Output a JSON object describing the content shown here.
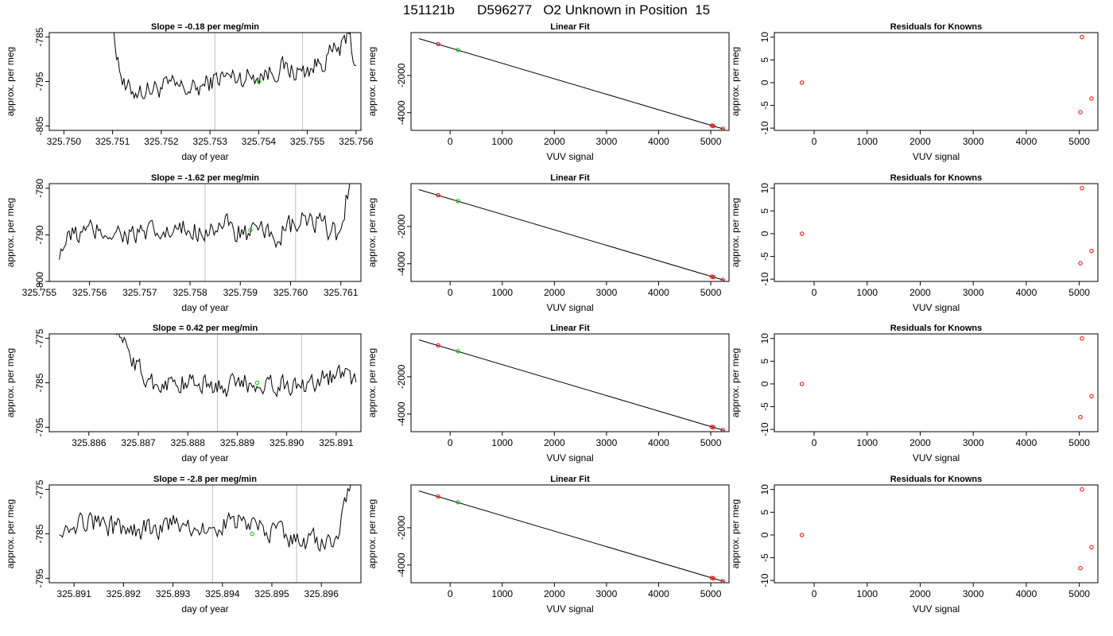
{
  "figure": {
    "title": "151121b      D596277   O2 Unknown in Position  15",
    "colors": {
      "line": "#000000",
      "unknown": "#00cc00",
      "known": "#ff0000",
      "marker": "#bfbfbf"
    }
  },
  "chart_data": [
    {
      "type": "line",
      "row": 0,
      "col": 0,
      "title": "Slope =  -0.18  per meg/min",
      "xlabel": "day of year",
      "ylabel": "approx. per meg",
      "xlim": [
        325.7497,
        325.7561
      ],
      "ylim": [
        -806,
        -784
      ],
      "xticks": [
        "325.750",
        "325.751",
        "325.752",
        "325.753",
        "325.754",
        "325.755",
        "325.756"
      ],
      "yticks": [
        "-805",
        "-795",
        "-785"
      ],
      "vlines": [
        325.7531,
        325.7549
      ],
      "start_x": 325.7509,
      "end_x": 325.756,
      "npts": 170,
      "trace": [
        [
          0.0,
          -776
        ],
        [
          0.025,
          -784
        ],
        [
          0.045,
          -791
        ],
        [
          0.07,
          -797
        ],
        [
          0.15,
          -797
        ],
        [
          0.25,
          -796
        ],
        [
          0.35,
          -797
        ],
        [
          0.45,
          -794
        ],
        [
          0.55,
          -794
        ],
        [
          0.65,
          -793
        ],
        [
          0.7,
          -792
        ],
        [
          0.78,
          -793
        ],
        [
          0.85,
          -791
        ],
        [
          0.92,
          -788
        ],
        [
          0.96,
          -787
        ],
        [
          0.972,
          -782
        ],
        [
          0.985,
          -789
        ],
        [
          1.0,
          -790
        ]
      ],
      "amp": 2.2,
      "unknown_point": {
        "x": 325.754,
        "y": -795
      }
    },
    {
      "type": "scatter",
      "row": 0,
      "col": 1,
      "title": "Linear Fit",
      "xlabel": "VUV signal",
      "ylabel": "approx. per meg",
      "xlim": [
        -750,
        5350
      ],
      "ylim": [
        -4950,
        300
      ],
      "xticks": [
        0,
        1000,
        2000,
        3000,
        4000,
        5000
      ],
      "yticks": [
        -4000,
        -2000
      ],
      "fit_line": {
        "x": [
          -600,
          5250
        ],
        "y": [
          -20,
          -4880
        ]
      },
      "known_points": [
        {
          "x": -230,
          "y": -320
        },
        {
          "x": 5020,
          "y": -4690
        },
        {
          "x": 5050,
          "y": -4720
        },
        {
          "x": 5230,
          "y": -4860
        }
      ],
      "unknown_points": [
        {
          "x": 150,
          "y": -630
        }
      ]
    },
    {
      "type": "scatter",
      "row": 0,
      "col": 2,
      "title": "Residuals for Knowns",
      "xlabel": "VUV signal",
      "ylabel": "approx. per meg",
      "xlim": [
        -750,
        5350
      ],
      "ylim": [
        -10.5,
        11
      ],
      "xticks": [
        0,
        1000,
        2000,
        3000,
        4000,
        5000
      ],
      "yticks": [
        -10,
        -5,
        0,
        5,
        10
      ],
      "points": [
        {
          "x": -230,
          "y": 0
        },
        {
          "x": 5020,
          "y": -6.5
        },
        {
          "x": 5050,
          "y": 10
        },
        {
          "x": 5230,
          "y": -3.5
        }
      ]
    },
    {
      "type": "line",
      "row": 1,
      "col": 0,
      "title": "Slope =  -1.62  per meg/min",
      "xlabel": "day of year",
      "ylabel": "approx. per meg",
      "xlim": [
        325.7552,
        325.7614
      ],
      "ylim": [
        -800,
        -779
      ],
      "xticks": [
        "325.755",
        "325.756",
        "325.757",
        "325.758",
        "325.759",
        "325.760",
        "325.761"
      ],
      "yticks": [
        "-800",
        "-790",
        "-780"
      ],
      "vlines": [
        325.7583,
        325.7601
      ],
      "start_x": 325.7554,
      "end_x": 325.7612,
      "npts": 180,
      "trace": [
        [
          0.0,
          -793
        ],
        [
          0.05,
          -790
        ],
        [
          0.15,
          -789
        ],
        [
          0.25,
          -790
        ],
        [
          0.35,
          -790
        ],
        [
          0.45,
          -789
        ],
        [
          0.55,
          -788
        ],
        [
          0.65,
          -790
        ],
        [
          0.75,
          -790
        ],
        [
          0.85,
          -787
        ],
        [
          0.93,
          -789
        ],
        [
          0.96,
          -790
        ],
        [
          0.98,
          -784
        ],
        [
          1.0,
          -776
        ]
      ],
      "amp": 2.4,
      "unknown_point": {
        "x": 325.7592,
        "y": -789
      }
    },
    {
      "type": "scatter",
      "row": 1,
      "col": 1,
      "title": "Linear Fit",
      "xlabel": "VUV signal",
      "ylabel": "approx. per meg",
      "xlim": [
        -750,
        5350
      ],
      "ylim": [
        -4950,
        300
      ],
      "xticks": [
        0,
        1000,
        2000,
        3000,
        4000,
        5000
      ],
      "yticks": [
        -4000,
        -2000
      ],
      "fit_line": {
        "x": [
          -600,
          5250
        ],
        "y": [
          -20,
          -4880
        ]
      },
      "known_points": [
        {
          "x": -230,
          "y": -320
        },
        {
          "x": 5020,
          "y": -4690
        },
        {
          "x": 5050,
          "y": -4720
        },
        {
          "x": 5230,
          "y": -4860
        }
      ],
      "unknown_points": [
        {
          "x": 150,
          "y": -630
        }
      ]
    },
    {
      "type": "scatter",
      "row": 1,
      "col": 2,
      "title": "Residuals for Knowns",
      "xlabel": "VUV signal",
      "ylabel": "approx. per meg",
      "xlim": [
        -750,
        5350
      ],
      "ylim": [
        -10.5,
        11
      ],
      "xticks": [
        0,
        1000,
        2000,
        3000,
        4000,
        5000
      ],
      "yticks": [
        -10,
        -5,
        0,
        5,
        10
      ],
      "points": [
        {
          "x": -230,
          "y": 0
        },
        {
          "x": 5020,
          "y": -6.5
        },
        {
          "x": 5050,
          "y": 10
        },
        {
          "x": 5230,
          "y": -3.8
        }
      ]
    },
    {
      "type": "line",
      "row": 2,
      "col": 0,
      "title": "Slope =  0.42  per meg/min",
      "xlabel": "day of year",
      "ylabel": "approx. per meg",
      "xlim": [
        325.8852,
        325.8915
      ],
      "ylim": [
        -796,
        -774
      ],
      "xticks": [
        "325.886",
        "325.887",
        "325.888",
        "325.889",
        "325.890",
        "325.891"
      ],
      "yticks": [
        "-795",
        "-785",
        "-775"
      ],
      "vlines": [
        325.8886,
        325.8903
      ],
      "start_x": 325.8865,
      "end_x": 325.8914,
      "npts": 160,
      "trace": [
        [
          0.0,
          -770
        ],
        [
          0.02,
          -775
        ],
        [
          0.06,
          -777
        ],
        [
          0.1,
          -782
        ],
        [
          0.15,
          -785
        ],
        [
          0.25,
          -785
        ],
        [
          0.35,
          -785
        ],
        [
          0.45,
          -786
        ],
        [
          0.55,
          -785
        ],
        [
          0.65,
          -785
        ],
        [
          0.75,
          -786
        ],
        [
          0.85,
          -784
        ],
        [
          0.95,
          -783
        ],
        [
          1.0,
          -785
        ]
      ],
      "amp": 2.2,
      "unknown_point": {
        "x": 325.8894,
        "y": -785
      }
    },
    {
      "type": "scatter",
      "row": 2,
      "col": 1,
      "title": "Linear Fit",
      "xlabel": "VUV signal",
      "ylabel": "approx. per meg",
      "xlim": [
        -750,
        5350
      ],
      "ylim": [
        -4950,
        300
      ],
      "xticks": [
        0,
        1000,
        2000,
        3000,
        4000,
        5000
      ],
      "yticks": [
        -4000,
        -2000
      ],
      "fit_line": {
        "x": [
          -600,
          5250
        ],
        "y": [
          -20,
          -4880
        ]
      },
      "known_points": [
        {
          "x": -230,
          "y": -320
        },
        {
          "x": 5020,
          "y": -4690
        },
        {
          "x": 5050,
          "y": -4720
        },
        {
          "x": 5230,
          "y": -4860
        }
      ],
      "unknown_points": [
        {
          "x": 150,
          "y": -630
        }
      ]
    },
    {
      "type": "scatter",
      "row": 2,
      "col": 2,
      "title": "Residuals for Knowns",
      "xlabel": "VUV signal",
      "ylabel": "approx. per meg",
      "xlim": [
        -750,
        5350
      ],
      "ylim": [
        -10.5,
        11
      ],
      "xticks": [
        0,
        1000,
        2000,
        3000,
        4000,
        5000
      ],
      "yticks": [
        -10,
        -5,
        0,
        5,
        10
      ],
      "points": [
        {
          "x": -230,
          "y": 0
        },
        {
          "x": 5020,
          "y": -7.3
        },
        {
          "x": 5050,
          "y": 10
        },
        {
          "x": 5230,
          "y": -2.7
        }
      ]
    },
    {
      "type": "line",
      "row": 3,
      "col": 0,
      "title": "Slope =  -2.8  per meg/min",
      "xlabel": "day of year",
      "ylabel": "approx. per meg",
      "xlim": [
        325.8905,
        325.8968
      ],
      "ylim": [
        -796,
        -774
      ],
      "xticks": [
        "325.891",
        "325.892",
        "325.893",
        "325.894",
        "325.895",
        "325.896"
      ],
      "yticks": [
        "-795",
        "-785",
        "-775"
      ],
      "vlines": [
        325.8938,
        325.8955
      ],
      "start_x": 325.8907,
      "end_x": 325.8966,
      "npts": 180,
      "trace": [
        [
          0.0,
          -783
        ],
        [
          0.1,
          -782
        ],
        [
          0.2,
          -784
        ],
        [
          0.3,
          -784
        ],
        [
          0.4,
          -783
        ],
        [
          0.5,
          -784
        ],
        [
          0.6,
          -782
        ],
        [
          0.7,
          -784
        ],
        [
          0.8,
          -786
        ],
        [
          0.9,
          -787
        ],
        [
          0.94,
          -787
        ],
        [
          0.96,
          -783
        ],
        [
          0.98,
          -778
        ],
        [
          1.0,
          -772
        ]
      ],
      "amp": 2.3,
      "unknown_point": {
        "x": 325.8946,
        "y": -785
      }
    },
    {
      "type": "scatter",
      "row": 3,
      "col": 1,
      "title": "Linear Fit",
      "xlabel": "VUV signal",
      "ylabel": "approx. per meg",
      "xlim": [
        -750,
        5350
      ],
      "ylim": [
        -4950,
        300
      ],
      "xticks": [
        0,
        1000,
        2000,
        3000,
        4000,
        5000
      ],
      "yticks": [
        -4000,
        -2000
      ],
      "fit_line": {
        "x": [
          -600,
          5250
        ],
        "y": [
          -20,
          -4880
        ]
      },
      "known_points": [
        {
          "x": -230,
          "y": -320
        },
        {
          "x": 5020,
          "y": -4690
        },
        {
          "x": 5050,
          "y": -4720
        },
        {
          "x": 5230,
          "y": -4860
        }
      ],
      "unknown_points": [
        {
          "x": 150,
          "y": -630
        }
      ]
    },
    {
      "type": "scatter",
      "row": 3,
      "col": 2,
      "title": "Residuals for Knowns",
      "xlabel": "VUV signal",
      "ylabel": "approx. per meg",
      "xlim": [
        -750,
        5350
      ],
      "ylim": [
        -10.5,
        11
      ],
      "xticks": [
        0,
        1000,
        2000,
        3000,
        4000,
        5000
      ],
      "yticks": [
        -10,
        -5,
        0,
        5,
        10
      ],
      "points": [
        {
          "x": -230,
          "y": 0
        },
        {
          "x": 5020,
          "y": -7.3
        },
        {
          "x": 5050,
          "y": 10
        },
        {
          "x": 5230,
          "y": -2.7
        }
      ]
    }
  ]
}
